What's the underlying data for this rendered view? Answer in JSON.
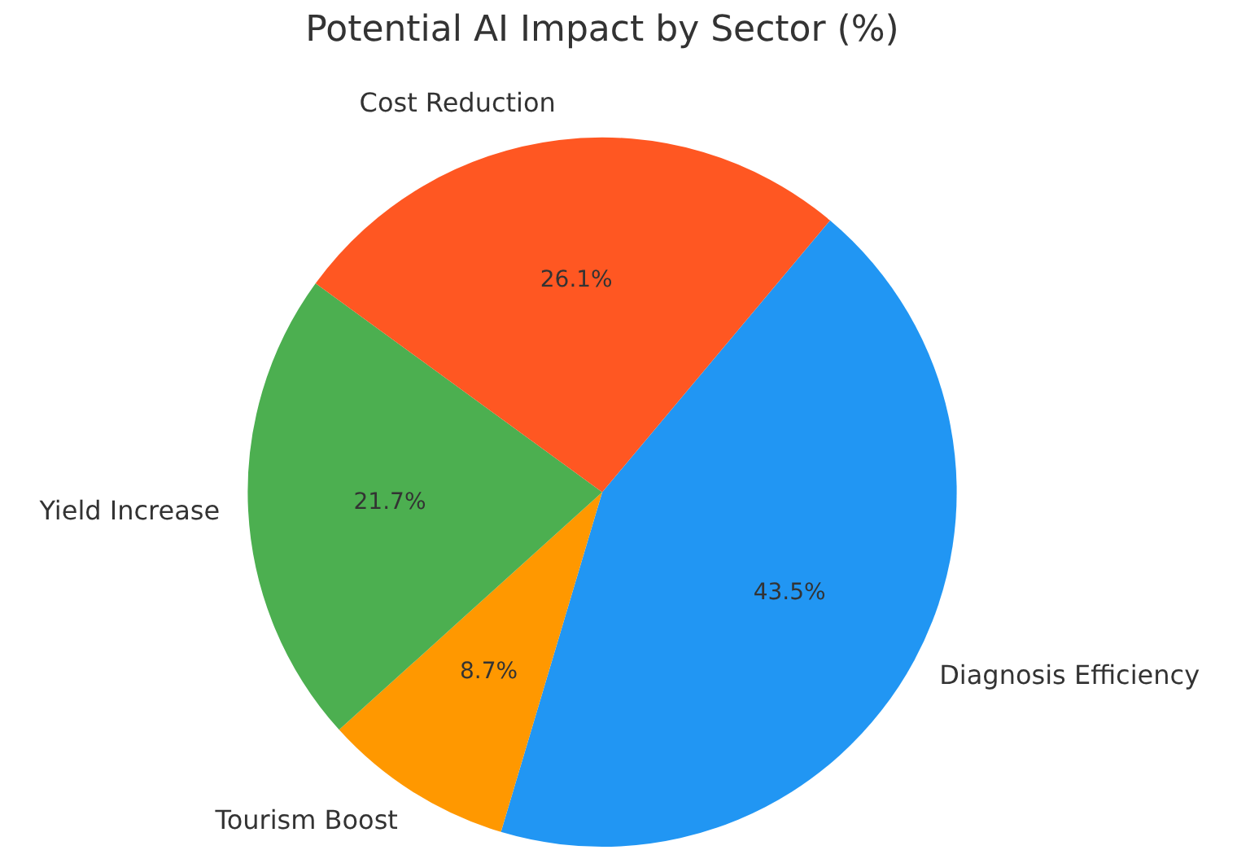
{
  "chart_data": {
    "type": "pie",
    "title": "Potential AI Impact by Sector (%)",
    "categories": [
      "Diagnosis Efficiency",
      "Tourism Boost",
      "Yield Increase",
      "Cost Reduction"
    ],
    "values": [
      43.5,
      8.7,
      21.7,
      26.1
    ],
    "colors": [
      "#2196f3",
      "#ff9800",
      "#4caf50",
      "#ff5722"
    ],
    "value_labels": [
      "43.5%",
      "8.7%",
      "21.7%",
      "26.1%"
    ],
    "legend": false
  }
}
